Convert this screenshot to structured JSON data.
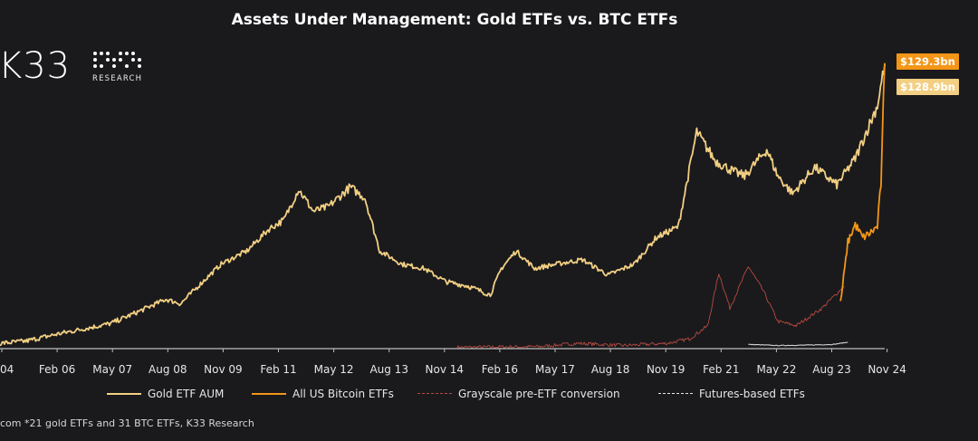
{
  "chart_data": {
    "type": "line",
    "title": "Assets Under Management: Gold ETFs vs. BTC ETFs",
    "x_ticks": [
      "04",
      "Feb 06",
      "May 07",
      "Aug 08",
      "Nov 09",
      "Feb 11",
      "May 12",
      "Aug 13",
      "Nov 14",
      "Feb 16",
      "May 17",
      "Aug 18",
      "Nov 19",
      "Feb 21",
      "May 22",
      "Aug 23",
      "Nov 24"
    ],
    "x_range": [
      "2004-11",
      "2024-11"
    ],
    "y_axis_shown": false,
    "series": [
      {
        "name": "Gold ETF AUM",
        "color": "#f2cf82",
        "style": "solid",
        "points": [
          [
            "2004-11",
            2
          ],
          [
            "2005-06",
            3
          ],
          [
            "2006-02",
            6
          ],
          [
            "2006-08",
            8
          ],
          [
            "2007-05",
            11
          ],
          [
            "2007-12",
            16
          ],
          [
            "2008-08",
            22
          ],
          [
            "2008-12",
            20
          ],
          [
            "2009-06",
            30
          ],
          [
            "2009-11",
            38
          ],
          [
            "2010-06",
            44
          ],
          [
            "2010-12",
            54
          ],
          [
            "2011-04",
            58
          ],
          [
            "2011-08",
            72
          ],
          [
            "2011-12",
            62
          ],
          [
            "2012-04",
            64
          ],
          [
            "2012-10",
            73
          ],
          [
            "2013-02",
            68
          ],
          [
            "2013-06",
            44
          ],
          [
            "2013-12",
            38
          ],
          [
            "2014-06",
            36
          ],
          [
            "2014-12",
            30
          ],
          [
            "2015-06",
            28
          ],
          [
            "2015-12",
            24
          ],
          [
            "2016-03",
            36
          ],
          [
            "2016-07",
            44
          ],
          [
            "2016-12",
            36
          ],
          [
            "2017-06",
            38
          ],
          [
            "2018-01",
            40
          ],
          [
            "2018-08",
            33
          ],
          [
            "2019-03",
            38
          ],
          [
            "2019-09",
            50
          ],
          [
            "2020-03",
            55
          ],
          [
            "2020-08",
            98
          ],
          [
            "2021-01",
            85
          ],
          [
            "2021-06",
            80
          ],
          [
            "2021-09",
            78
          ],
          [
            "2022-03",
            90
          ],
          [
            "2022-06",
            78
          ],
          [
            "2022-10",
            70
          ],
          [
            "2023-04",
            82
          ],
          [
            "2023-10",
            74
          ],
          [
            "2024-03",
            86
          ],
          [
            "2024-09",
            110
          ],
          [
            "2024-11",
            128.9
          ]
        ]
      },
      {
        "name": "All US Bitcoin ETFs",
        "color": "#f39617",
        "style": "solid",
        "points": [
          [
            "2023-11",
            20
          ],
          [
            "2024-01",
            48
          ],
          [
            "2024-03",
            56
          ],
          [
            "2024-05",
            50
          ],
          [
            "2024-07",
            52
          ],
          [
            "2024-09",
            55
          ],
          [
            "2024-10",
            75
          ],
          [
            "2024-11",
            129.3
          ]
        ]
      },
      {
        "name": "Grayscale pre-ETF conversion",
        "color": "#b84a3e",
        "style": "dashed",
        "points": [
          [
            "2015-03",
            0.2
          ],
          [
            "2017-01",
            0.5
          ],
          [
            "2017-12",
            2
          ],
          [
            "2018-12",
            1
          ],
          [
            "2019-12",
            2
          ],
          [
            "2020-06",
            4
          ],
          [
            "2020-11",
            10
          ],
          [
            "2021-02",
            34
          ],
          [
            "2021-05",
            18
          ],
          [
            "2021-10",
            37
          ],
          [
            "2022-02",
            26
          ],
          [
            "2022-06",
            12
          ],
          [
            "2022-11",
            10
          ],
          [
            "2023-06",
            18
          ],
          [
            "2023-12",
            28
          ]
        ]
      },
      {
        "name": "Futures-based ETFs",
        "color": "#e6e6e6",
        "style": "dashed",
        "points": [
          [
            "2021-10",
            1.5
          ],
          [
            "2022-06",
            1
          ],
          [
            "2023-02",
            1.2
          ],
          [
            "2023-09",
            1.5
          ],
          [
            "2024-01",
            2.5
          ]
        ]
      }
    ],
    "end_labels": [
      {
        "text": "$129.3bn",
        "series": "All US Bitcoin ETFs",
        "color": "#f39617"
      },
      {
        "text": "$128.9bn",
        "series": "Gold ETF AUM",
        "color": "#f2cf82"
      }
    ]
  },
  "logo": {
    "text": "K33",
    "subtitle": "RESEARCH"
  },
  "legend": [
    "Gold ETF AUM",
    "All US Bitcoin ETFs",
    "Grayscale pre-ETF conversion",
    "Futures-based ETFs"
  ],
  "source": "com *21 gold ETFs and 31 BTC ETFs, K33 Research"
}
